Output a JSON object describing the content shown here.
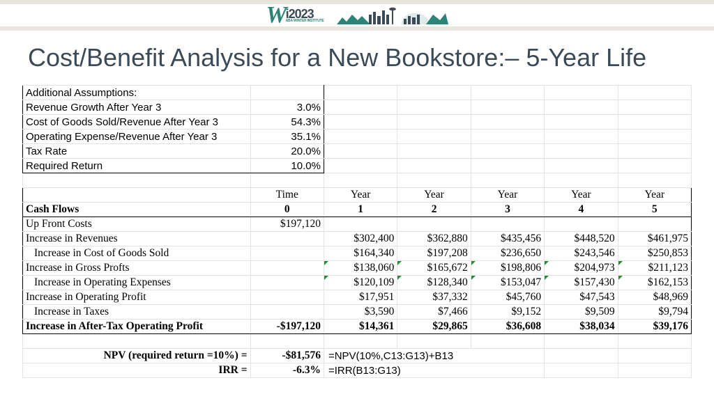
{
  "logo": {
    "w": "W",
    "year": "i2023",
    "sub": "ABA WINTER INSTITUTE"
  },
  "title": "Cost/Benefit Analysis for a New Bookstore:– 5-Year Life",
  "assumptions": {
    "header": "Additional Assumptions:",
    "rows": [
      {
        "label": "Revenue Growth After Year 3",
        "value": "3.0%"
      },
      {
        "label": "Cost of Goods Sold/Revenue After Year 3",
        "value": "54.3%"
      },
      {
        "label": "Operating Expense/Revenue After Year 3",
        "value": "35.1%"
      },
      {
        "label": "Tax Rate",
        "value": "20.0%"
      },
      {
        "label": "Required Return",
        "value": "10.0%"
      }
    ]
  },
  "cashflows": {
    "head_row1": [
      "",
      "Time",
      "Year",
      "Year",
      "Year",
      "Year",
      "Year"
    ],
    "head_row2": [
      "Cash Flows",
      "0",
      "1",
      "2",
      "3",
      "4",
      "5"
    ],
    "rows": [
      {
        "label": "Up Front Costs",
        "indent": 0,
        "bold": false,
        "flags": false,
        "vals": [
          "$197,120",
          "",
          "",
          "",
          "",
          ""
        ]
      },
      {
        "label": "Increase in Revenues",
        "indent": 0,
        "bold": false,
        "flags": false,
        "vals": [
          "",
          "$302,400",
          "$362,880",
          "$435,456",
          "$448,520",
          "$461,975"
        ]
      },
      {
        "label": "Increase in Cost of Goods Sold",
        "indent": 1,
        "bold": false,
        "flags": false,
        "vals": [
          "",
          "$164,340",
          "$197,208",
          "$236,650",
          "$243,546",
          "$250,853"
        ]
      },
      {
        "label": "Increase in Gross Profts",
        "indent": 0,
        "bold": false,
        "flags": true,
        "vals": [
          "",
          "$138,060",
          "$165,672",
          "$198,806",
          "$204,973",
          "$211,123"
        ]
      },
      {
        "label": "Increase in Operating Expenses",
        "indent": 1,
        "bold": false,
        "flags": true,
        "vals": [
          "",
          "$120,109",
          "$128,340",
          "$153,047",
          "$157,430",
          "$162,153"
        ]
      },
      {
        "label": "Increase in Operating Profit",
        "indent": 0,
        "bold": false,
        "flags": false,
        "vals": [
          "",
          "$17,951",
          "$37,332",
          "$45,760",
          "$47,543",
          "$48,969"
        ]
      },
      {
        "label": "Increase in Taxes",
        "indent": 1,
        "bold": false,
        "flags": false,
        "vals": [
          "",
          "$3,590",
          "$7,466",
          "$9,152",
          "$9,509",
          "$9,794"
        ]
      },
      {
        "label": "Increase in After-Tax Operating Profit",
        "indent": 0,
        "bold": true,
        "flags": false,
        "vals": [
          "-$197,120",
          "$14,361",
          "$29,865",
          "$36,608",
          "$38,034",
          "$39,176"
        ]
      }
    ]
  },
  "results": {
    "npv_label": "NPV (required return =10%) =",
    "npv_value": "-$81,576",
    "npv_formula": "=NPV(10%,C13:G13)+B13",
    "irr_label": "IRR =",
    "irr_value": "-6.3%",
    "irr_formula": "=IRR(B13:G13)"
  },
  "style": {
    "brand_teal": "#2a8576",
    "brand_slate": "#3b4a57",
    "grid_grey": "#e3e3e3",
    "banner_cream": "#e8e5dc",
    "flag_green": "#2a8a3a"
  }
}
